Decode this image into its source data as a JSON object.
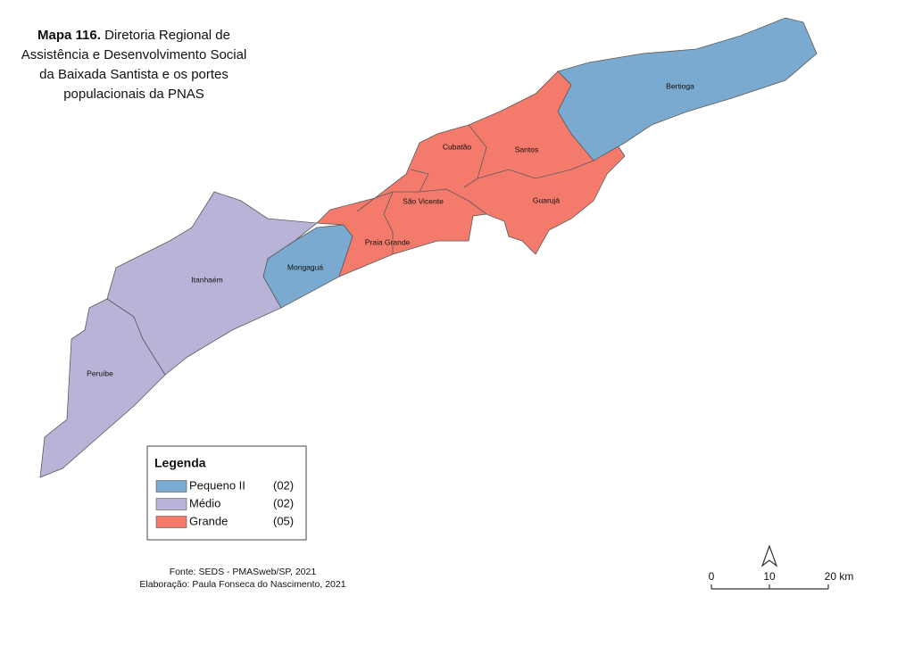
{
  "title": {
    "label": "Mapa 116.",
    "lines": [
      "Diretoria Regional de",
      "Assistência e Desenvolvimento Social",
      "da Baixada Santista e os portes",
      "populacionais da PNAS"
    ]
  },
  "municipalities": [
    "Bertioga",
    "Cubatão",
    "Santos",
    "São Vicente",
    "Guarujá",
    "Praia Grande",
    "Mongaguá",
    "Itanhaém",
    "Peruíbe"
  ],
  "legend": {
    "title": "Legenda",
    "items": [
      {
        "name": "Pequeno II",
        "count": "(02)",
        "color": "#7aaad0"
      },
      {
        "name": "Médio",
        "count": "(02)",
        "color": "#b8b4d8"
      },
      {
        "name": "Grande",
        "count": "(05)",
        "color": "#f47a6c"
      }
    ]
  },
  "source": [
    "Fonte: SEDS - PMASweb/SP, 2021",
    "Elaboração: Paula Fonseca do Nascimento, 2021"
  ],
  "scale": [
    "0",
    "10",
    "20 km"
  ]
}
